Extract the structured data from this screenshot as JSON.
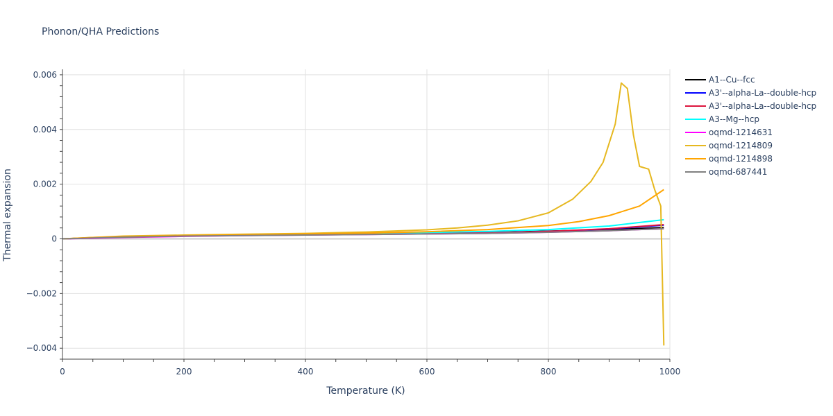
{
  "chart_data": {
    "type": "line",
    "title": "Phonon/QHA Predictions",
    "xlabel": "Temperature (K)",
    "ylabel": "Thermal expansion",
    "xlim": [
      0,
      1000
    ],
    "ylim": [
      -0.0044,
      0.0062
    ],
    "xticks": [
      0,
      200,
      400,
      600,
      800,
      1000
    ],
    "xtick_labels": [
      "0",
      "200",
      "400",
      "600",
      "800",
      "1000"
    ],
    "yticks": [
      -0.004,
      -0.002,
      0,
      0.002,
      0.004,
      0.006
    ],
    "ytick_labels": [
      "−0.004",
      "−0.002",
      "0",
      "0.002",
      "0.004",
      "0.006"
    ],
    "grid": true,
    "legend_position": "right",
    "series": [
      {
        "name": "A1--Cu--fcc",
        "color": "#000000",
        "x": [
          0,
          50,
          100,
          200,
          300,
          400,
          500,
          600,
          700,
          800,
          900,
          990
        ],
        "y": [
          0,
          4e-05,
          8e-05,
          0.00011,
          0.00014,
          0.00016,
          0.00018,
          0.0002,
          0.00023,
          0.00028,
          0.00034,
          0.00041
        ]
      },
      {
        "name": "A3'--alpha-La--double-hcp",
        "color": "#0000ff",
        "x": [
          0,
          50,
          100,
          200,
          300,
          400,
          500,
          600,
          700,
          800,
          900,
          990
        ],
        "y": [
          0,
          4e-05,
          7e-05,
          0.0001,
          0.00013,
          0.00015,
          0.00017,
          0.00019,
          0.00022,
          0.00027,
          0.00036,
          0.0005
        ]
      },
      {
        "name": "A3'--alpha-La--double-hcp",
        "color": "#dc143c",
        "x": [
          0,
          50,
          100,
          200,
          300,
          400,
          500,
          600,
          700,
          800,
          900,
          990
        ],
        "y": [
          0,
          4e-05,
          7e-05,
          0.0001,
          0.00013,
          0.00015,
          0.00017,
          0.00019,
          0.00022,
          0.00027,
          0.00037,
          0.00052
        ]
      },
      {
        "name": "A3--Mg--hcp",
        "color": "#00ffff",
        "x": [
          0,
          50,
          100,
          200,
          300,
          400,
          500,
          600,
          700,
          800,
          900,
          990
        ],
        "y": [
          0,
          4e-05,
          8e-05,
          0.00012,
          0.00015,
          0.00017,
          0.0002,
          0.00023,
          0.00027,
          0.00034,
          0.00047,
          0.0007
        ]
      },
      {
        "name": "oqmd-1214631",
        "color": "#ff00ff",
        "x": [
          0,
          50,
          100,
          200,
          300,
          400,
          500,
          600,
          700,
          800,
          900,
          990
        ],
        "y": [
          0,
          2e-05,
          5e-05,
          9e-05,
          0.00012,
          0.00014,
          0.00016,
          0.00018,
          0.0002,
          0.00024,
          0.0003,
          0.00037
        ]
      },
      {
        "name": "oqmd-1214809",
        "color": "#e6b820",
        "x": [
          0,
          50,
          100,
          200,
          300,
          400,
          500,
          600,
          650,
          700,
          750,
          800,
          840,
          870,
          890,
          910,
          920,
          930,
          940,
          950,
          965,
          975,
          985,
          990
        ],
        "y": [
          0,
          5e-05,
          0.0001,
          0.00014,
          0.00017,
          0.0002,
          0.00025,
          0.00033,
          0.0004,
          0.0005,
          0.00066,
          0.00095,
          0.00145,
          0.0021,
          0.0028,
          0.0042,
          0.0057,
          0.0055,
          0.0038,
          0.00265,
          0.00255,
          0.0018,
          0.0012,
          -0.0039
        ]
      },
      {
        "name": "oqmd-1214898",
        "color": "#ffa500",
        "x": [
          0,
          50,
          100,
          200,
          300,
          400,
          500,
          600,
          700,
          800,
          850,
          900,
          950,
          990
        ],
        "y": [
          0,
          5e-05,
          8e-05,
          0.00012,
          0.00015,
          0.00018,
          0.00021,
          0.00026,
          0.00034,
          0.00049,
          0.00063,
          0.00085,
          0.0012,
          0.0018
        ]
      },
      {
        "name": "oqmd-687441",
        "color": "#808080",
        "x": [
          0,
          50,
          100,
          200,
          300,
          400,
          500,
          600,
          700,
          800,
          900,
          990
        ],
        "y": [
          0,
          3e-05,
          6e-05,
          0.0001,
          0.00012,
          0.00014,
          0.00016,
          0.00018,
          0.0002,
          0.00024,
          0.0003,
          0.00037
        ]
      }
    ]
  }
}
